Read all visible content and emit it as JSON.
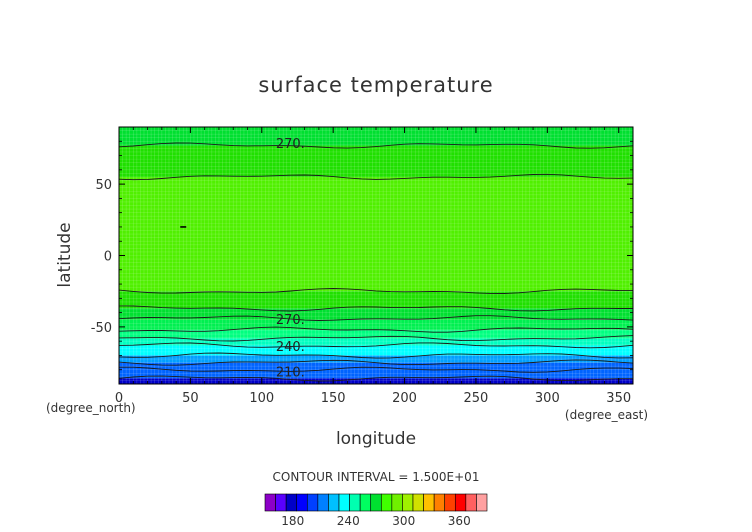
{
  "chart_data": {
    "type": "heatmap",
    "title": "surface temperature",
    "xlabel": "longitude",
    "ylabel": "latitude",
    "x_unit": "(degree_east)",
    "y_unit": "(degree_north)",
    "xlim": [
      0,
      360
    ],
    "ylim": [
      -90,
      90
    ],
    "x_ticks": [
      0,
      50,
      100,
      150,
      200,
      250,
      300,
      350
    ],
    "y_ticks": [
      -50,
      0,
      50
    ],
    "contour_interval_text": "CONTOUR INTERVAL = 1.500E+01",
    "contour_labels": [
      {
        "text": "270.",
        "lon": 120,
        "lat": 78
      },
      {
        "text": "270.",
        "lon": 120,
        "lat": -45
      },
      {
        "text": "240.",
        "lon": 120,
        "lat": -64
      },
      {
        "text": "210.",
        "lon": 120,
        "lat": -82
      }
    ],
    "bands": [
      {
        "from": -90,
        "to": -86,
        "color": "#0000c8"
      },
      {
        "from": -86,
        "to": -75,
        "color": "#0064ff"
      },
      {
        "from": -75,
        "to": -70,
        "color": "#00a0ff"
      },
      {
        "from": -70,
        "to": -63,
        "color": "#00ffff"
      },
      {
        "from": -63,
        "to": -58,
        "color": "#00ffc0"
      },
      {
        "from": -58,
        "to": -52,
        "color": "#00ff80"
      },
      {
        "from": -52,
        "to": -45,
        "color": "#00f050"
      },
      {
        "from": -45,
        "to": -37,
        "color": "#00e030"
      },
      {
        "from": -37,
        "to": -25,
        "color": "#20e000"
      },
      {
        "from": -25,
        "to": 55,
        "color": "#50f000"
      },
      {
        "from": 55,
        "to": 77,
        "color": "#20e000"
      },
      {
        "from": 77,
        "to": 90,
        "color": "#00e030"
      }
    ],
    "contour_lines_lat": [
      -86,
      -80,
      -75,
      -70,
      -63,
      -58,
      -52,
      -44,
      -37,
      -25,
      55,
      77
    ],
    "colorbar": {
      "colors": [
        "#8c00c8",
        "#5a00ff",
        "#0000c8",
        "#0000ff",
        "#0040ff",
        "#0080ff",
        "#00c0ff",
        "#00ffff",
        "#00ffb0",
        "#00ff60",
        "#00e030",
        "#40ff00",
        "#70f000",
        "#a0f000",
        "#d0e000",
        "#ffc000",
        "#ff8000",
        "#ff4000",
        "#ff0000",
        "#ff6060",
        "#ffa0a0"
      ],
      "tick_values": [
        180,
        240,
        300,
        360
      ],
      "vmin": 150,
      "vmax": 390
    },
    "marker": {
      "lon": 45,
      "lat": 20
    }
  }
}
